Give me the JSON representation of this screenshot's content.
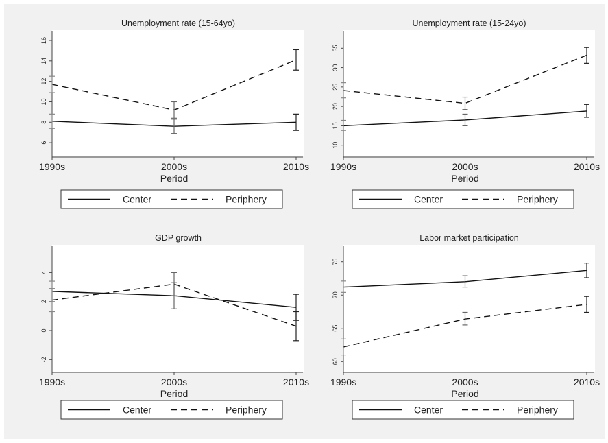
{
  "chart_data": [
    {
      "type": "line",
      "title": "Unemployment rate (15-64yo)",
      "xlabel": "Period",
      "ylabel": "",
      "categories": [
        "1990s",
        "2000s",
        "2010s"
      ],
      "ylim": [
        5,
        16
      ],
      "yticks": [
        "6",
        "8",
        "10",
        "12",
        "14",
        "16"
      ],
      "series": [
        {
          "name": "Center",
          "style": "solid",
          "values": [
            8.1,
            7.6,
            8.0
          ],
          "ci_low": [
            7.4,
            6.9,
            7.2
          ],
          "ci_high": [
            8.8,
            8.3,
            8.8
          ]
        },
        {
          "name": "Periphery",
          "style": "dashed",
          "values": [
            11.7,
            9.2,
            14.1
          ],
          "ci_low": [
            10.9,
            8.4,
            13.1
          ],
          "ci_high": [
            12.5,
            10.0,
            15.1
          ]
        }
      ],
      "legend": "bottom"
    },
    {
      "type": "line",
      "title": "Unemployment rate (15-24yo)",
      "xlabel": "Period",
      "ylabel": "",
      "categories": [
        "1990s",
        "2000s",
        "2010s"
      ],
      "ylim": [
        8,
        37
      ],
      "yticks": [
        "10",
        "15",
        "20",
        "25",
        "30",
        "35"
      ],
      "series": [
        {
          "name": "Center",
          "style": "solid",
          "values": [
            15.0,
            16.5,
            18.8
          ],
          "ci_low": [
            13.8,
            15.0,
            17.2
          ],
          "ci_high": [
            16.4,
            18.0,
            20.5
          ]
        },
        {
          "name": "Periphery",
          "style": "dashed",
          "values": [
            24.1,
            20.8,
            33.2
          ],
          "ci_low": [
            22.2,
            19.2,
            31.1
          ],
          "ci_high": [
            26.1,
            22.4,
            35.2
          ]
        }
      ],
      "legend": "bottom"
    },
    {
      "type": "line",
      "title": "GDP growth",
      "xlabel": "Period",
      "ylabel": "",
      "categories": [
        "1990s",
        "2000s",
        "2010s"
      ],
      "ylim": [
        -2.6,
        5.2
      ],
      "yticks": [
        "-2",
        "0",
        "2",
        "4"
      ],
      "series": [
        {
          "name": "Center",
          "style": "solid",
          "values": [
            2.7,
            2.4,
            1.6
          ],
          "ci_low": [
            2.0,
            1.5,
            0.7
          ],
          "ci_high": [
            3.4,
            3.3,
            2.5
          ]
        },
        {
          "name": "Periphery",
          "style": "dashed",
          "values": [
            2.1,
            3.2,
            0.3
          ],
          "ci_low": [
            1.3,
            2.4,
            -0.7
          ],
          "ci_high": [
            2.9,
            4.0,
            1.3
          ]
        }
      ],
      "legend": "bottom"
    },
    {
      "type": "line",
      "title": "Labor market participation",
      "xlabel": "Period",
      "ylabel": "",
      "categories": [
        "1990s",
        "2000s",
        "2010s"
      ],
      "ylim": [
        59,
        76
      ],
      "yticks": [
        "60",
        "65",
        "70",
        "75"
      ],
      "series": [
        {
          "name": "Center",
          "style": "solid",
          "values": [
            71.2,
            72.0,
            73.7
          ],
          "ci_low": [
            70.4,
            71.2,
            72.6
          ],
          "ci_high": [
            72.1,
            72.9,
            74.8
          ]
        },
        {
          "name": "Periphery",
          "style": "dashed",
          "values": [
            62.2,
            66.4,
            68.6
          ],
          "ci_low": [
            61.0,
            65.5,
            67.4
          ],
          "ci_high": [
            63.4,
            67.4,
            69.8
          ]
        }
      ],
      "legend": "bottom"
    }
  ]
}
